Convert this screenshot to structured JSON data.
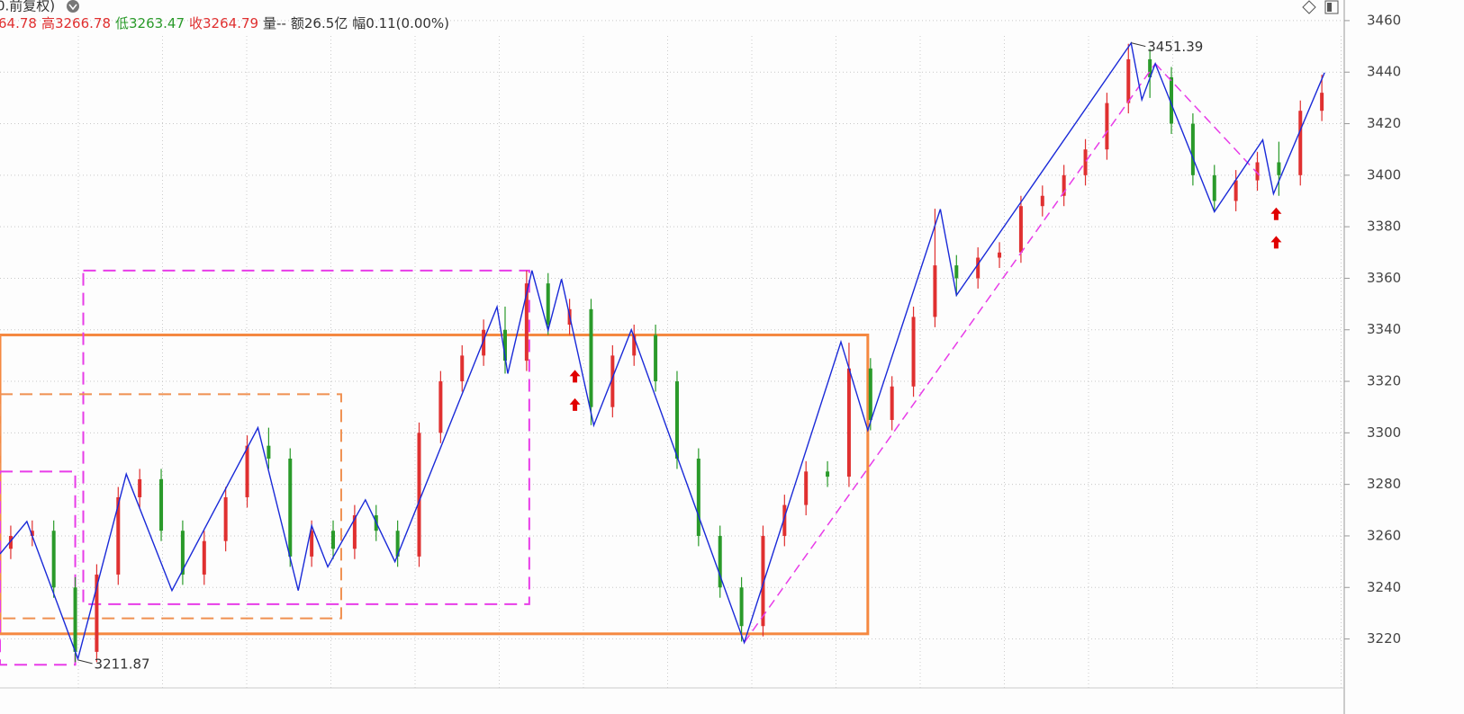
{
  "chart_data": {
    "type": "candlestick",
    "header": [
      {
        "text": "0.前复权)",
        "color": "#333333"
      },
      {
        "text": "64.78",
        "color": "#e03030"
      },
      {
        "text": "高3266.78",
        "color": "#e03030"
      },
      {
        "text": "低3263.47",
        "color": "#2a9a2a"
      },
      {
        "text": "收3264.79",
        "color": "#e03030"
      },
      {
        "text": "量--",
        "color": "#333333"
      },
      {
        "text": "额26.5亿",
        "color": "#333333"
      },
      {
        "text": "幅0.11(0.00%)",
        "color": "#333333"
      }
    ],
    "xlim": [
      0,
      500
    ],
    "ylim": [
      3201,
      3468
    ],
    "yticks": [
      3220,
      3240,
      3260,
      3280,
      3300,
      3320,
      3340,
      3360,
      3380,
      3400,
      3420,
      3440,
      3460
    ],
    "grid": true,
    "up_color": "#e03030",
    "down_color": "#2a9a2a",
    "x": [
      4,
      12,
      20,
      28,
      36,
      44,
      52,
      60,
      68,
      76,
      84,
      92,
      100,
      108,
      116,
      124,
      132,
      140,
      148,
      156,
      164,
      172,
      180,
      188,
      196,
      204,
      212,
      220,
      228,
      236,
      244,
      252,
      260,
      268,
      276,
      284,
      292,
      300,
      308,
      316,
      324,
      332,
      340,
      348,
      356,
      364,
      372,
      380,
      388,
      396,
      404,
      412,
      420,
      428,
      436,
      444,
      452,
      460,
      468,
      476,
      484,
      492
    ],
    "candles": [
      [
        3255,
        3264,
        3251,
        3260
      ],
      [
        3260,
        3266,
        3256,
        3262
      ],
      [
        3262,
        3266,
        3236,
        3240
      ],
      [
        3240,
        3244,
        3211,
        3215
      ],
      [
        3215,
        3249,
        3211,
        3245
      ],
      [
        3245,
        3279,
        3241,
        3275
      ],
      [
        3275,
        3286,
        3271,
        3282
      ],
      [
        3282,
        3286,
        3258,
        3262
      ],
      [
        3262,
        3266,
        3241,
        3245
      ],
      [
        3245,
        3262,
        3241,
        3258
      ],
      [
        3258,
        3279,
        3254,
        3275
      ],
      [
        3275,
        3299,
        3271,
        3295
      ],
      [
        3295,
        3302,
        3286,
        3290
      ],
      [
        3290,
        3294,
        3248,
        3252
      ],
      [
        3252,
        3266,
        3248,
        3262
      ],
      [
        3262,
        3266,
        3251,
        3255
      ],
      [
        3255,
        3272,
        3251,
        3268
      ],
      [
        3268,
        3272,
        3258,
        3262
      ],
      [
        3262,
        3266,
        3248,
        3252
      ],
      [
        3252,
        3304,
        3248,
        3300
      ],
      [
        3300,
        3324,
        3296,
        3320
      ],
      [
        3320,
        3334,
        3316,
        3330
      ],
      [
        3330,
        3344,
        3326,
        3340
      ],
      [
        3340,
        3349,
        3323,
        3328
      ],
      [
        3328,
        3363,
        3324,
        3358
      ],
      [
        3358,
        3362,
        3338,
        3342
      ],
      [
        3342,
        3352,
        3338,
        3348
      ],
      [
        3348,
        3352,
        3303,
        3310
      ],
      [
        3310,
        3334,
        3306,
        3330
      ],
      [
        3330,
        3342,
        3326,
        3338
      ],
      [
        3338,
        3342,
        3316,
        3320
      ],
      [
        3320,
        3324,
        3286,
        3290
      ],
      [
        3290,
        3294,
        3256,
        3260
      ],
      [
        3260,
        3264,
        3236,
        3240
      ],
      [
        3240,
        3244,
        3219,
        3225
      ],
      [
        3225,
        3264,
        3221,
        3260
      ],
      [
        3260,
        3276,
        3256,
        3272
      ],
      [
        3272,
        3289,
        3268,
        3285
      ],
      [
        3285,
        3289,
        3279,
        3283
      ],
      [
        3283,
        3335,
        3279,
        3325
      ],
      [
        3325,
        3329,
        3301,
        3305
      ],
      [
        3305,
        3322,
        3301,
        3318
      ],
      [
        3318,
        3349,
        3314,
        3345
      ],
      [
        3345,
        3387,
        3341,
        3365
      ],
      [
        3365,
        3369,
        3353,
        3360
      ],
      [
        3360,
        3372,
        3356,
        3368
      ],
      [
        3368,
        3374,
        3364,
        3370
      ],
      [
        3370,
        3392,
        3366,
        3388
      ],
      [
        3388,
        3396,
        3384,
        3392
      ],
      [
        3392,
        3404,
        3388,
        3400
      ],
      [
        3400,
        3414,
        3396,
        3410
      ],
      [
        3410,
        3432,
        3406,
        3428
      ],
      [
        3428,
        3451,
        3424,
        3445
      ],
      [
        3445,
        3449,
        3430,
        3438
      ],
      [
        3438,
        3442,
        3416,
        3420
      ],
      [
        3420,
        3424,
        3396,
        3400
      ],
      [
        3400,
        3404,
        3386,
        3390
      ],
      [
        3390,
        3402,
        3386,
        3398
      ],
      [
        3398,
        3409,
        3394,
        3405
      ],
      [
        3405,
        3413,
        3392,
        3400
      ],
      [
        3400,
        3429,
        3396,
        3425
      ],
      [
        3425,
        3439,
        3421,
        3432
      ]
    ],
    "zigzag": {
      "color": "#1a2ad8",
      "x": [
        0,
        10,
        29,
        47,
        64,
        96,
        111,
        116,
        122,
        136,
        147,
        185,
        189,
        198,
        204,
        209,
        221,
        235,
        277,
        313,
        323,
        350,
        356,
        421,
        425,
        430,
        452,
        470,
        474,
        493
      ],
      "values": [
        3253,
        3265.6,
        3212.3,
        3284,
        3238.8,
        3302,
        3238.8,
        3264,
        3248,
        3274,
        3250,
        3348.9,
        3323,
        3363,
        3339.8,
        3359.7,
        3302.9,
        3340,
        3218.6,
        3335.3,
        3301,
        3386.8,
        3353.4,
        3451.3,
        3429.3,
        3443.3,
        3385.8,
        3413.7,
        3392.8,
        3439.8
      ]
    },
    "boxes": [
      {
        "x": [
          0,
          323
        ],
        "y": [
          3222,
          3338
        ],
        "color": "#f58840",
        "dashed": false
      },
      {
        "x": [
          31,
          197
        ],
        "y": [
          3233.5,
          3363
        ],
        "color": "#e83ce8",
        "dashed": true
      },
      {
        "x": [
          0,
          127
        ],
        "y": [
          3228,
          3315
        ],
        "color": "#f09050",
        "dashed": true
      },
      {
        "x": [
          0,
          28
        ],
        "y": [
          3210,
          3285
        ],
        "color": "#e83ce8",
        "dashed": true
      }
    ],
    "trendlines": [
      {
        "x": [
          277,
          430
        ],
        "y": [
          3218.6,
          3443.3
        ],
        "color": "#e83ce8"
      },
      {
        "x": [
          430,
          469
        ],
        "y": [
          3443.3,
          3399.7
        ],
        "color": "#e83ce8"
      }
    ],
    "arrows": {
      "color": "#e00000",
      "x": [
        214,
        214,
        475,
        475
      ],
      "y": [
        3322,
        3311,
        3385,
        3374
      ]
    },
    "annotations": [
      {
        "text": "3451.39",
        "x": 421,
        "y": 3451.39
      },
      {
        "text": "3211.87",
        "x": 29,
        "y": 3211.87
      }
    ]
  }
}
